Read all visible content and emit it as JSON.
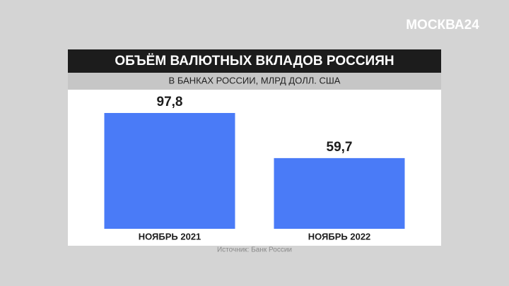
{
  "chart_data": {
    "type": "bar",
    "logo": "МОСКВА24",
    "title": "ОБЪЁМ ВАЛЮТНЫХ ВКЛАДОВ РОССИЯН",
    "subtitle": "В БАНКАХ РОССИИ, МЛРД ДОЛЛ. США",
    "categories": [
      "НОЯБРЬ 2021",
      "НОЯБРЬ 2022"
    ],
    "values": [
      97.8,
      59.7
    ],
    "value_labels": [
      "97,8",
      "59,7"
    ],
    "color": "#4a7bf7",
    "source": "Источник: Банк России"
  }
}
